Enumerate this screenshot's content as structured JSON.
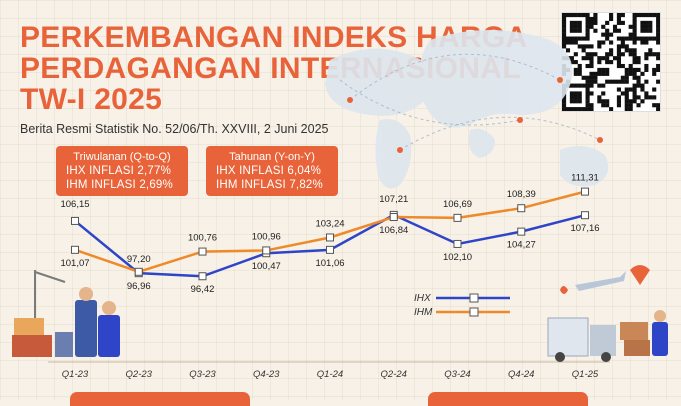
{
  "header": {
    "title_lines": [
      "PERKEMBANGAN INDEKS HARGA",
      "PERDAGANGAN INTERNASIONAL",
      "TW-I 2025"
    ],
    "subtitle": "Berita Resmi Statistik No. 52/06/Th. XXVIII, 2 Juni 2025"
  },
  "summary": {
    "qtoq": {
      "label": "Triwulanan (Q-to-Q)",
      "ihx": "IHX INFLASI 2,77%",
      "ihm": "IHM INFLASI 2,69%"
    },
    "yony": {
      "label": "Tahunan (Y-on-Y)",
      "ihx": "IHX INFLASI 6,04%",
      "ihm": "IHM INFLASI 7,82%"
    }
  },
  "colors": {
    "ihx": "#2f45c8",
    "ihm": "#ef8a2a",
    "accent": "#e8633a"
  },
  "chart_data": {
    "type": "line",
    "categories": [
      "Q1-23",
      "Q2-23",
      "Q3-23",
      "Q4-23",
      "Q1-24",
      "Q2-24",
      "Q3-24",
      "Q4-24",
      "Q1-25"
    ],
    "series": [
      {
        "name": "IHX",
        "values": [
          106.15,
          96.96,
          96.42,
          100.47,
          101.06,
          107.21,
          102.1,
          104.27,
          107.16
        ],
        "labels": [
          "106,15",
          "96,96",
          "96,42",
          "100,47",
          "101,06",
          "107,21",
          "102,10",
          "104,27",
          "107,16"
        ]
      },
      {
        "name": "IHM",
        "values": [
          101.07,
          97.2,
          100.76,
          100.96,
          103.24,
          106.84,
          106.69,
          108.39,
          111.31
        ],
        "labels": [
          "101,07",
          "97,20",
          "100,76",
          "100,96",
          "103,24",
          "106,84",
          "106,69",
          "108,39",
          "111,31"
        ]
      }
    ],
    "ylim": [
      94,
      113
    ],
    "legend_position": "bottom-right"
  }
}
